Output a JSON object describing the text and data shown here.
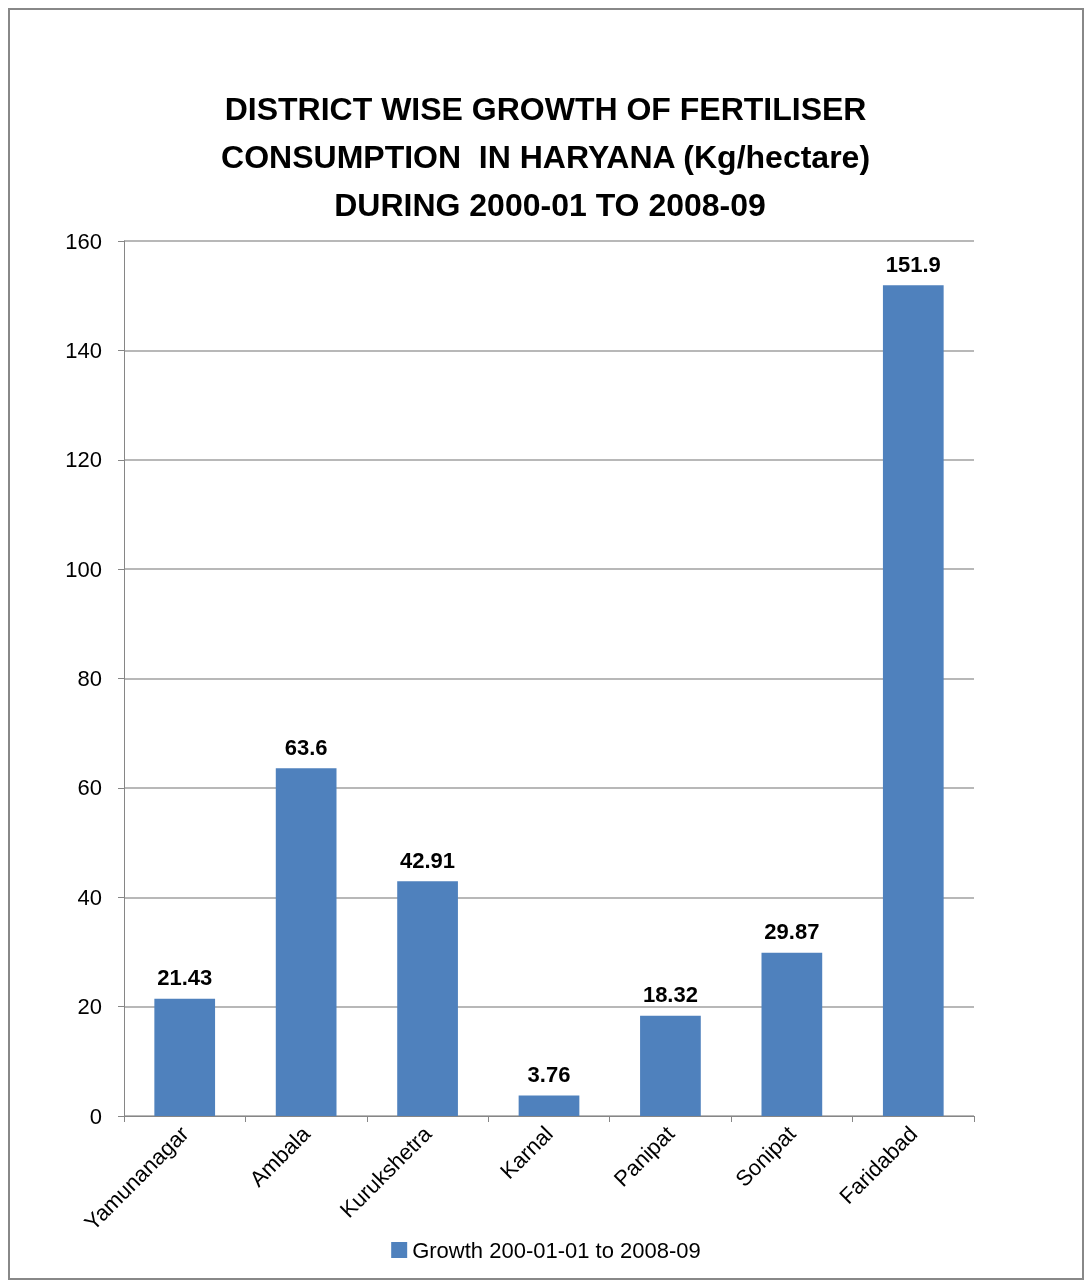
{
  "chart_data": {
    "type": "bar",
    "title": "DISTRICT WISE GROWTH OF FERTILISER CONSUMPTION  IN HARYANA (Kg/hectare) DURING 2000-01 TO 2008-09",
    "categories": [
      "Yamunanagar",
      "Ambala",
      "Kurukshetra",
      "Karnal",
      "Panipat",
      "Sonipat",
      "Faridabad"
    ],
    "series": [
      {
        "name": "Growth 200-01-01 to 2008-09",
        "color": "#4f81bd",
        "values": [
          21.43,
          63.6,
          42.91,
          3.76,
          18.32,
          29.87,
          151.9
        ]
      }
    ],
    "ylim": [
      0,
      160
    ],
    "yticks": [
      0,
      20,
      40,
      60,
      80,
      100,
      120,
      140,
      160
    ],
    "grid": "y",
    "legend": "bottom",
    "data_labels": true
  }
}
